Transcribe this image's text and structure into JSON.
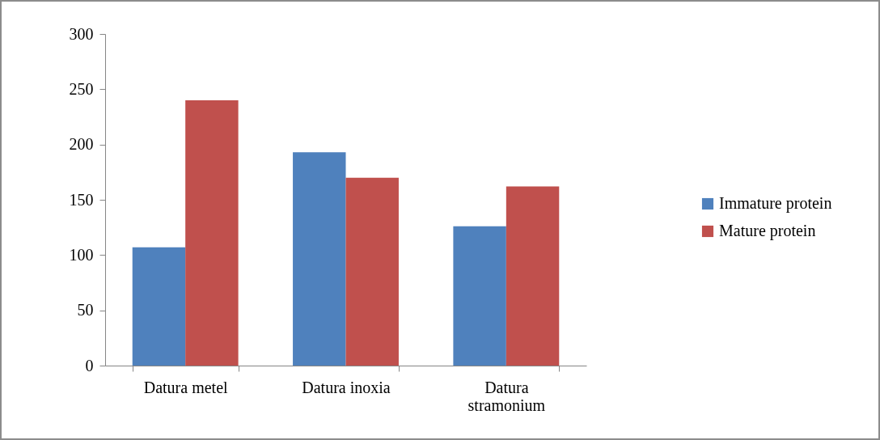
{
  "chart_data": {
    "type": "bar",
    "categories": [
      "Datura metel",
      "Datura inoxia",
      "Datura stramonium"
    ],
    "series": [
      {
        "name": "Immature  protein",
        "color": "#4f81bd",
        "values": [
          107,
          193,
          126
        ]
      },
      {
        "name": "Mature protein",
        "color": "#c0504d",
        "values": [
          240,
          170,
          162
        ]
      }
    ],
    "ylim": [
      0,
      300
    ],
    "yticks": [
      0,
      50,
      100,
      150,
      200,
      250,
      300
    ],
    "grid": false,
    "legend": "right"
  }
}
